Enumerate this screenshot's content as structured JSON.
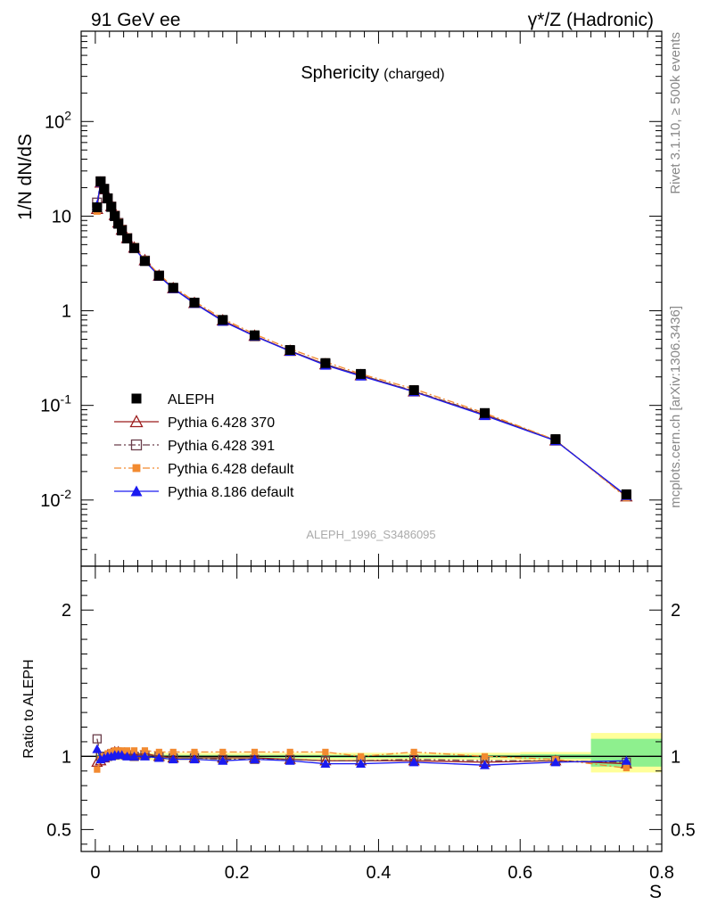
{
  "header": {
    "left": "91 GeV ee",
    "right": "γ*/Z (Hadronic)"
  },
  "side": {
    "rivet": "Rivet 3.1.10, ≥ 500k events",
    "mcplots": "mcplots.cern.ch [arXiv:1306.3436]"
  },
  "chart_data": {
    "type": "scatter",
    "title": "Sphericity",
    "title_suffix": "(charged)",
    "analysis_label": "ALEPH_1996_S3486095",
    "xlabel": "S",
    "ylabel": "1/N dN/dS",
    "ratio_ylabel": "Ratio to ALEPH",
    "xlim": [
      -0.02,
      0.8
    ],
    "ylim": [
      0.002,
      900
    ],
    "yscale": "log",
    "ratio_ylim": [
      0.35,
      2.3
    ],
    "x_ticks": [
      "0",
      "0.2",
      "0.4",
      "0.6",
      "0.8"
    ],
    "y_ticks": [
      "10^-2",
      "10^-1",
      "1",
      "10",
      "10^2"
    ],
    "ratio_ticks": [
      "0.5",
      "1",
      "2"
    ],
    "x": [
      0.0025,
      0.0075,
      0.0125,
      0.0175,
      0.0225,
      0.0275,
      0.0325,
      0.0375,
      0.045,
      0.055,
      0.07,
      0.09,
      0.11,
      0.14,
      0.18,
      0.225,
      0.275,
      0.325,
      0.375,
      0.45,
      0.55,
      0.65,
      0.75
    ],
    "series": [
      {
        "name": "ALEPH",
        "color": "#000000",
        "values": [
          12.4,
          23.3,
          19.4,
          15.4,
          12.5,
          10.0,
          8.3,
          7.05,
          5.8,
          4.6,
          3.35,
          2.35,
          1.75,
          1.22,
          0.8,
          0.55,
          0.385,
          0.28,
          0.215,
          0.145,
          0.083,
          0.044,
          0.0115
        ],
        "uncertainty_bands": [
          {
            "x0": 0.0,
            "x1": 0.6,
            "lo": 0.975,
            "hi": 1.025,
            "color": "#ffff99"
          },
          {
            "x0": 0.6,
            "x1": 0.7,
            "lo": 0.97,
            "hi": 1.03,
            "color": "#ffff99"
          },
          {
            "x0": 0.7,
            "x1": 0.8,
            "lo": 0.89,
            "hi": 1.16,
            "color": "#ffff99"
          },
          {
            "x0": 0.0,
            "x1": 0.6,
            "lo": 0.99,
            "hi": 1.01,
            "color": "#8ef08e"
          },
          {
            "x0": 0.6,
            "x1": 0.7,
            "lo": 0.985,
            "hi": 1.015,
            "color": "#8ef08e"
          },
          {
            "x0": 0.7,
            "x1": 0.8,
            "lo": 0.93,
            "hi": 1.12,
            "color": "#8ef08e"
          }
        ]
      },
      {
        "name": "Pythia 6.428 370",
        "color": "#9b1b1b",
        "marker": "triangle-open",
        "line": "solid",
        "ratio": [
          0.96,
          0.97,
          0.99,
          1.01,
          1.02,
          1.03,
          1.03,
          1.02,
          1.01,
          1.01,
          1.02,
          1.0,
          0.99,
          0.99,
          0.99,
          0.99,
          0.98,
          0.97,
          0.97,
          0.97,
          0.96,
          0.97,
          0.95
        ]
      },
      {
        "name": "Pythia 6.428 391",
        "color": "#6a3d4a",
        "marker": "square-open",
        "line": "dashdot",
        "ratio": [
          1.12,
          1.0,
          1.0,
          1.0,
          1.01,
          1.01,
          1.02,
          1.02,
          1.01,
          1.0,
          1.01,
          1.0,
          0.99,
          0.99,
          0.98,
          0.98,
          0.98,
          0.97,
          0.97,
          0.98,
          0.97,
          0.97,
          0.96
        ]
      },
      {
        "name": "Pythia 6.428 default",
        "color": "#f28a30",
        "marker": "square-filled",
        "line": "dashdot",
        "ratio": [
          0.91,
          0.98,
          1.0,
          1.02,
          1.03,
          1.04,
          1.04,
          1.04,
          1.04,
          1.04,
          1.04,
          1.03,
          1.03,
          1.03,
          1.03,
          1.03,
          1.03,
          1.03,
          1.0,
          1.03,
          1.0,
          0.98,
          0.92
        ]
      },
      {
        "name": "Pythia 8.186 default",
        "color": "#1a1af0",
        "marker": "triangle-filled",
        "line": "solid",
        "ratio": [
          1.05,
          0.98,
          0.99,
          1.0,
          1.0,
          1.01,
          1.01,
          1.01,
          1.0,
          1.0,
          1.0,
          0.99,
          0.98,
          0.98,
          0.97,
          0.98,
          0.97,
          0.95,
          0.95,
          0.96,
          0.94,
          0.96,
          0.97
        ]
      }
    ]
  }
}
